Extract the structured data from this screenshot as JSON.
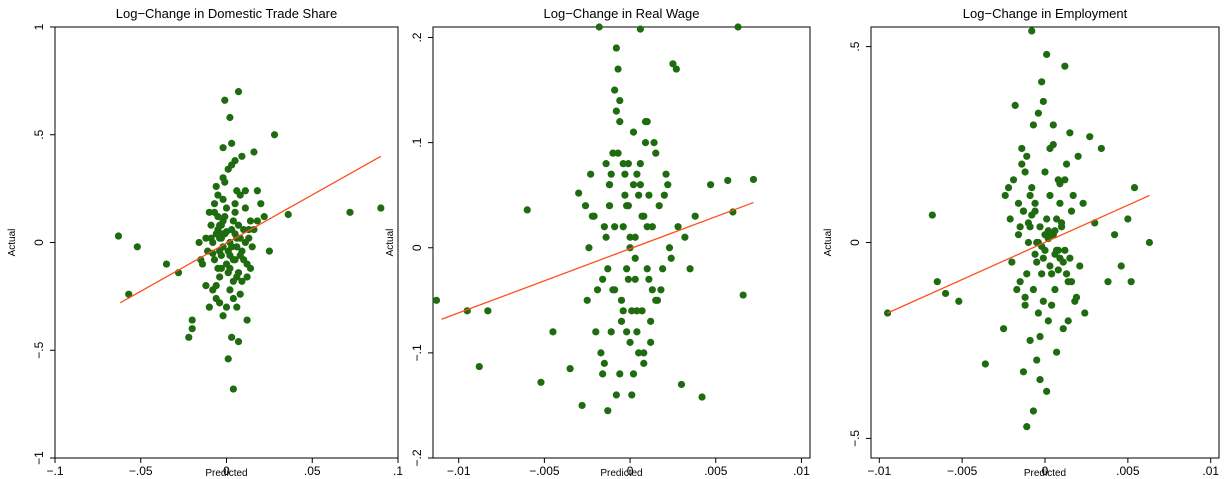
{
  "chart_data": [
    {
      "type": "scatter",
      "title": "Log−Change in Domestic Trade Share",
      "xlabel": "Predicted",
      "ylabel": "Actual",
      "xlim": [
        -0.1,
        0.1
      ],
      "ylim": [
        -1,
        1
      ],
      "xticks": [
        -0.1,
        -0.05,
        0,
        0.05,
        0.1
      ],
      "xtick_labels": [
        "−.1",
        "−.05",
        "0",
        ".05",
        ".1"
      ],
      "yticks": [
        -1,
        -0.5,
        0,
        0.5,
        1
      ],
      "ytick_labels": [
        "−1",
        "−.5",
        "0",
        ".5",
        "1"
      ],
      "fit_line": {
        "x": [
          -0.062,
          0.09
        ],
        "y": [
          -0.28,
          0.4
        ]
      },
      "points": {
        "x": [
          -0.063,
          -0.057,
          -0.052,
          -0.035,
          -0.028,
          -0.022,
          -0.02,
          -0.02,
          -0.015,
          -0.012,
          -0.01,
          -0.009,
          -0.008,
          -0.007,
          -0.006,
          -0.005,
          -0.004,
          -0.003,
          -0.002,
          -0.001,
          0.0,
          0.001,
          0.002,
          0.003,
          0.004,
          0.005,
          0.006,
          0.007,
          0.008,
          0.009,
          0.01,
          0.011,
          0.012,
          0.013,
          0.014,
          0.015,
          0.016,
          0.018,
          0.02,
          0.022,
          0.025,
          0.028,
          0.036,
          0.072,
          0.09,
          -0.004,
          -0.002,
          0.002,
          0.005,
          0.008,
          0.01,
          0.012,
          -0.004,
          -0.002,
          0.001,
          0.005,
          0.008,
          -0.006,
          -0.003,
          0.003,
          0.006,
          -0.008,
          -0.005,
          0.0,
          0.004,
          0.007,
          -0.007,
          -0.003,
          0.002,
          0.006,
          -0.005,
          -0.001,
          0.003,
          0.007,
          0.011,
          -0.009,
          -0.004,
          0.0,
          0.004,
          0.009,
          -0.006,
          -0.002,
          0.002,
          0.006,
          -0.011,
          -0.007,
          -0.003,
          0.001,
          0.005,
          0.009,
          0.013,
          -0.006,
          -0.001,
          0.004,
          -0.004,
          0.001,
          0.006,
          -0.002,
          0.003,
          -0.001,
          0.002,
          -0.003,
          0.004,
          0.0,
          0.005,
          -0.005,
          0.008,
          -0.008,
          0.011,
          -0.01,
          0.012,
          -0.012,
          0.014,
          0.016,
          -0.014,
          0.018,
          -0.016,
          0.003,
          -0.002,
          0.007
        ],
        "y": [
          0.03,
          -0.24,
          -0.02,
          -0.1,
          -0.14,
          -0.44,
          -0.4,
          -0.36,
          -0.08,
          -0.2,
          -0.3,
          0.08,
          -0.05,
          0.18,
          -0.26,
          0.12,
          -0.04,
          -0.12,
          0.3,
          0.66,
          0.05,
          -0.54,
          0.58,
          0.46,
          -0.68,
          0.38,
          -0.16,
          0.7,
          0.22,
          0.4,
          -0.08,
          0.16,
          -0.36,
          0.02,
          0.1,
          -0.02,
          0.42,
          0.24,
          0.18,
          0.12,
          -0.04,
          0.5,
          0.13,
          0.14,
          0.16,
          0.02,
          -0.02,
          0.0,
          0.04,
          -0.06,
          0.06,
          -0.1,
          0.08,
          0.1,
          -0.04,
          -0.08,
          0.02,
          0.04,
          -0.06,
          0.06,
          -0.02,
          0.0,
          0.06,
          -0.1,
          0.1,
          -0.14,
          0.14,
          0.02,
          -0.06,
          0.02,
          -0.12,
          0.12,
          -0.02,
          0.08,
          0.0,
          0.02,
          -0.16,
          0.16,
          -0.08,
          -0.04,
          -0.2,
          0.2,
          -0.22,
          0.24,
          -0.04,
          -0.08,
          0.04,
          -0.14,
          0.14,
          -0.18,
          0.06,
          0.26,
          0.28,
          -0.26,
          -0.28,
          0.34,
          -0.3,
          -0.34,
          0.36,
          0.04,
          -0.12,
          0.08,
          -0.18,
          -0.3,
          0.18,
          0.22,
          -0.24,
          -0.22,
          0.24,
          0.14,
          -0.16,
          0.02,
          -0.12,
          0.06,
          -0.1,
          0.1,
          0.0,
          -0.44,
          0.44,
          -0.46
        ]
      }
    },
    {
      "type": "scatter",
      "title": "Log−Change in Real Wage",
      "xlabel": "Predicted",
      "ylabel": "Actual",
      "xlim": [
        -0.0115,
        0.0105
      ],
      "ylim": [
        -0.2,
        0.21
      ],
      "xticks": [
        -0.01,
        -0.005,
        0,
        0.005,
        0.01
      ],
      "xtick_labels": [
        "−.01",
        "−.005",
        "0",
        ".005",
        ".01"
      ],
      "yticks": [
        -0.2,
        -0.1,
        0,
        0.1,
        0.2
      ],
      "ytick_labels": [
        "−.2",
        "−.1",
        "0",
        ".1",
        ".2"
      ],
      "fit_line": {
        "x": [
          -0.011,
          0.0072
        ],
        "y": [
          -0.068,
          0.043
        ]
      },
      "points": {
        "x": [
          -0.0113,
          -0.0095,
          -0.0088,
          -0.0083,
          -0.006,
          -0.0052,
          -0.0045,
          -0.0035,
          -0.003,
          -0.0028,
          -0.0025,
          -0.0022,
          -0.002,
          -0.0018,
          -0.0016,
          -0.0015,
          -0.0014,
          -0.0013,
          -0.0012,
          -0.0011,
          -0.001,
          -0.0009,
          -0.0008,
          -0.0007,
          -0.0006,
          -0.0005,
          -0.0004,
          -0.0003,
          -0.0002,
          -0.0001,
          0.0,
          0.0001,
          0.0002,
          0.0003,
          0.0004,
          0.0005,
          0.0006,
          0.0007,
          0.0008,
          0.0009,
          0.001,
          0.0011,
          0.0012,
          0.0013,
          0.0015,
          0.0017,
          0.0019,
          0.0021,
          0.0023,
          0.0025,
          0.0027,
          0.003,
          0.0032,
          0.0035,
          0.0038,
          0.0042,
          0.0047,
          0.0057,
          0.006,
          0.0063,
          0.0066,
          0.0072,
          -0.0012,
          -0.001,
          -0.0008,
          -0.0006,
          -0.0004,
          -0.0002,
          0.0,
          0.0002,
          0.0004,
          0.0006,
          0.0008,
          0.001,
          -0.0013,
          -0.0009,
          -0.0005,
          -0.0001,
          0.0003,
          0.0007,
          0.0011,
          -0.0014,
          -0.0007,
          0.0,
          0.0005,
          0.0012,
          -0.0016,
          -0.0003,
          0.0009,
          -0.0019,
          0.0014,
          -0.0021,
          0.0018,
          -0.0024,
          0.0022,
          -0.0011,
          0.0004,
          -0.0006,
          0.0008,
          -0.0002,
          0.0001,
          -0.0015,
          0.0016,
          -0.0017,
          0.002,
          -0.0023,
          0.0024,
          -0.0026,
          0.0028,
          -0.0001,
          0.0003,
          -0.0004,
          0.0006,
          -0.0008,
          0.001,
          -0.0012,
          0.0013,
          0.0015,
          -0.0009,
          0.0002
        ],
        "y": [
          -0.05,
          -0.06,
          -0.113,
          -0.06,
          0.036,
          -0.128,
          -0.08,
          -0.115,
          0.052,
          -0.15,
          -0.05,
          0.03,
          -0.08,
          0.21,
          -0.03,
          -0.11,
          0.01,
          -0.155,
          0.06,
          -0.08,
          0.09,
          -0.04,
          0.19,
          0.17,
          0.12,
          -0.07,
          0.02,
          0.05,
          -0.02,
          0.08,
          0.01,
          -0.14,
          0.06,
          -0.03,
          0.07,
          -0.1,
          0.208,
          -0.06,
          0.03,
          0.1,
          -0.02,
          0.05,
          -0.09,
          0.02,
          -0.05,
          0.04,
          -0.02,
          0.07,
          0.0,
          0.175,
          0.17,
          -0.13,
          0.01,
          -0.02,
          0.03,
          -0.142,
          0.06,
          0.064,
          0.034,
          0.21,
          -0.045,
          0.065,
          0.04,
          -0.04,
          0.13,
          -0.12,
          0.08,
          -0.08,
          0.0,
          0.11,
          -0.06,
          0.06,
          -0.1,
          0.02,
          -0.02,
          0.02,
          -0.05,
          0.04,
          -0.01,
          0.03,
          -0.03,
          0.08,
          0.09,
          -0.09,
          0.05,
          -0.07,
          -0.12,
          0.07,
          0.12,
          -0.04,
          0.1,
          0.03,
          -0.04,
          0.0,
          0.06,
          0.07,
          -0.08,
          0.14,
          -0.11,
          0.04,
          -0.06,
          0.02,
          -0.05,
          -0.1,
          0.05,
          0.07,
          -0.01,
          0.04,
          0.02,
          -0.03,
          0.01,
          -0.06,
          0.08,
          -0.14,
          0.12,
          0.06,
          -0.04,
          0.09,
          0.15,
          -0.12
        ]
      }
    },
    {
      "type": "scatter",
      "title": "Log−Change in Employment",
      "xlabel": "Predicted",
      "ylabel": "Actual",
      "xlim": [
        -0.0105,
        0.0105
      ],
      "ylim": [
        -0.55,
        0.55
      ],
      "xticks": [
        -0.01,
        -0.005,
        0,
        0.005,
        0.01
      ],
      "xtick_labels": [
        "−.01",
        "−.005",
        "0",
        ".005",
        ".01"
      ],
      "yticks": [
        -0.5,
        0,
        0.5
      ],
      "ytick_labels": [
        "−.5",
        "0",
        ".5"
      ],
      "fit_line": {
        "x": [
          -0.0095,
          0.0063
        ],
        "y": [
          -0.18,
          0.12
        ]
      },
      "points": {
        "x": [
          -0.0095,
          -0.0068,
          -0.0065,
          -0.006,
          -0.0052,
          -0.0036,
          -0.0025,
          -0.0022,
          -0.002,
          -0.0018,
          -0.0016,
          -0.0015,
          -0.0014,
          -0.0013,
          -0.0012,
          -0.0011,
          -0.001,
          -0.0009,
          -0.0008,
          -0.0007,
          -0.0006,
          -0.0005,
          -0.0004,
          -0.0003,
          -0.0002,
          -0.0001,
          0.0,
          0.0001,
          0.0002,
          0.0003,
          0.0004,
          0.0005,
          0.0006,
          0.0007,
          0.0008,
          0.0009,
          0.001,
          0.0011,
          0.0012,
          0.0013,
          0.0014,
          0.0015,
          0.0016,
          0.0018,
          0.002,
          0.0023,
          0.0027,
          0.003,
          0.0034,
          0.0038,
          0.0042,
          0.0046,
          0.005,
          0.0052,
          0.0054,
          0.0063,
          -0.0013,
          -0.0011,
          -0.0009,
          -0.0007,
          -0.0005,
          -0.0003,
          -0.0001,
          0.0001,
          0.0003,
          0.0005,
          0.0007,
          0.0009,
          -0.0012,
          -0.0008,
          -0.0004,
          0.0,
          0.0004,
          0.0008,
          0.0012,
          -0.001,
          -0.0006,
          -0.0002,
          0.0002,
          0.0006,
          0.001,
          -0.0014,
          0.0014,
          -0.0016,
          0.0016,
          -0.0019,
          0.0019,
          -0.0021,
          0.0021,
          -0.0024,
          0.0024,
          -0.0003,
          0.0003,
          -0.0007,
          0.0007,
          -0.0011,
          0.0011,
          -0.0001,
          0.0001,
          -0.0005,
          0.0005,
          -0.0009,
          0.0009,
          -0.0013,
          0.0013,
          -0.0017,
          0.0017,
          -0.0004,
          0.0004,
          -0.0002,
          0.0002,
          -0.0006,
          0.0006,
          -0.0008,
          0.0008,
          -0.0012,
          0.0012,
          -0.0015,
          0.0015,
          0.0
        ],
        "y": [
          -0.18,
          0.07,
          -0.1,
          -0.13,
          -0.15,
          -0.31,
          -0.22,
          0.14,
          -0.05,
          0.35,
          0.02,
          -0.1,
          0.24,
          -0.33,
          0.18,
          -0.47,
          0.05,
          -0.25,
          0.54,
          -0.43,
          0.1,
          -0.05,
          0.33,
          -0.35,
          0.41,
          -0.15,
          0.02,
          0.48,
          -0.2,
          0.12,
          -0.08,
          0.25,
          -0.12,
          0.06,
          -0.02,
          0.15,
          0.04,
          -0.05,
          0.45,
          0.2,
          -0.1,
          0.28,
          0.08,
          -0.15,
          0.22,
          0.1,
          0.27,
          0.05,
          0.24,
          -0.1,
          0.02,
          -0.06,
          0.06,
          -0.1,
          0.14,
          0.0,
          0.08,
          -0.08,
          0.12,
          -0.12,
          0.0,
          0.04,
          -0.04,
          0.06,
          -0.06,
          0.02,
          -0.02,
          0.1,
          -0.14,
          0.14,
          -0.18,
          0.18,
          -0.16,
          0.16,
          -0.02,
          0.0,
          0.08,
          -0.08,
          0.03,
          -0.03,
          0.05,
          0.2,
          -0.2,
          0.1,
          -0.1,
          0.16,
          -0.14,
          0.06,
          -0.06,
          0.12,
          -0.18,
          -0.24,
          0.24,
          0.3,
          -0.28,
          0.22,
          -0.22,
          0.36,
          -0.38,
          -0.3,
          0.3,
          0.04,
          -0.04,
          0.08,
          -0.08,
          -0.12,
          0.12,
          0.0,
          0.02,
          -0.01,
          0.01,
          -0.03,
          0.03,
          0.07,
          -0.07,
          -0.16,
          0.16,
          0.04,
          -0.04,
          -0.02
        ]
      }
    }
  ],
  "colors": {
    "point": "#1f6b0f",
    "fit_line": "#ff4f1f",
    "axis": "#000000"
  }
}
